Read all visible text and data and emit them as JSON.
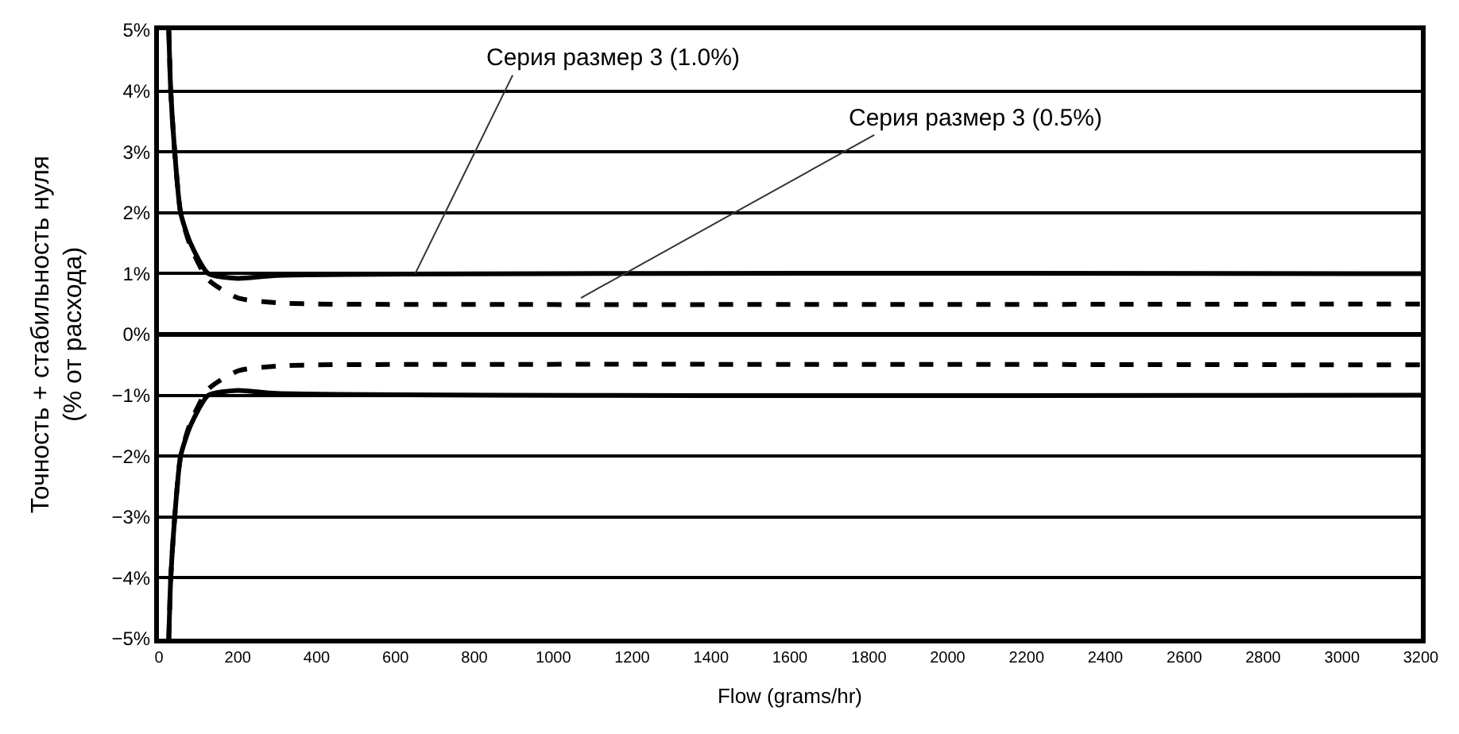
{
  "chart_data": {
    "type": "line",
    "xlabel": "Flow (grams/hr)",
    "ylabel": "Точность + стабильность нуля\n(% от расхода)",
    "series": [
      {
        "color": "#000000",
        "line_style": "solid",
        "x": [
          25,
          30,
          40,
          55,
          80,
          125,
          200,
          300,
          3200
        ],
        "values": [
          5,
          4,
          3,
          2,
          1.5,
          1.0,
          0.92,
          0.97,
          1.0
        ]
      },
      {
        "color": "#000000",
        "line_style": "dashed",
        "x": [
          25,
          30,
          40,
          55,
          80,
          125,
          200,
          300,
          400,
          3200
        ],
        "values": [
          5,
          4,
          3,
          2,
          1.45,
          0.9,
          0.6,
          0.52,
          0.5,
          0.5
        ]
      },
      {
        "color": "#000000",
        "line_style": "solid",
        "x": [
          25,
          30,
          40,
          55,
          80,
          125,
          200,
          300,
          3200
        ],
        "values": [
          -5,
          -4,
          -3,
          -2,
          -1.5,
          -1.0,
          -0.92,
          -0.97,
          -1.0
        ]
      },
      {
        "color": "#000000",
        "line_style": "dashed",
        "x": [
          25,
          30,
          40,
          55,
          80,
          125,
          200,
          300,
          400,
          3200
        ],
        "values": [
          -5,
          -4,
          -3,
          -2,
          -1.45,
          -0.9,
          -0.6,
          -0.52,
          -0.5,
          -0.5
        ]
      }
    ],
    "annotations": [
      {
        "text": "Серия размер 3 (1.0%)",
        "x": 650,
        "y": 1.0
      },
      {
        "text": "Серия размер 3 (0.5%)",
        "x": 1070,
        "y": 0.6
      }
    ],
    "xlim": [
      0,
      3200
    ],
    "xticks": [
      0,
      200,
      400,
      600,
      800,
      1000,
      1200,
      1400,
      1600,
      1800,
      2000,
      2200,
      2400,
      2600,
      2800,
      3000,
      3200
    ],
    "ylim": [
      -5,
      5
    ],
    "yticks": [
      {
        "value": 5,
        "label": "5%"
      },
      {
        "value": 4,
        "label": "4%"
      },
      {
        "value": 3,
        "label": "3%"
      },
      {
        "value": 2,
        "label": "2%"
      },
      {
        "value": 1,
        "label": "1%"
      },
      {
        "value": 0,
        "label": "0%"
      },
      {
        "value": -1,
        "label": "−1%"
      },
      {
        "value": -2,
        "label": "−2%"
      },
      {
        "value": -3,
        "label": "−3%"
      },
      {
        "value": -4,
        "label": "−4%"
      },
      {
        "value": -5,
        "label": "−5%"
      }
    ],
    "grid": "y"
  }
}
